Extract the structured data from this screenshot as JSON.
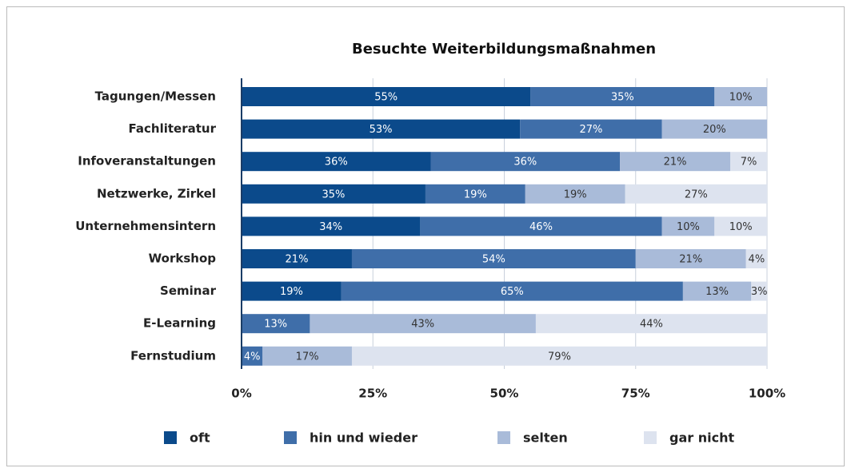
{
  "chart_data": {
    "type": "stacked-bar-horizontal",
    "title": "Besuchte Weiterbildungsmaßnahmen",
    "categories": [
      "Tagungen/Messen",
      "Fachliteratur",
      "Infoveranstaltungen",
      "Netzwerke, Zirkel",
      "Unternehmensintern",
      "Workshop",
      "Seminar",
      "E-Learning",
      "Fernstudium"
    ],
    "series": [
      {
        "name": "oft",
        "color": "#0b4a8b",
        "values": [
          55,
          53,
          36,
          35,
          34,
          21,
          19,
          0,
          0
        ],
        "value_labels": [
          "55%",
          "53%",
          "36%",
          "35%",
          "34%",
          "21%",
          "19%",
          null,
          null
        ]
      },
      {
        "name": "hin und wieder",
        "color": "#3f6ea9",
        "values": [
          35,
          27,
          36,
          19,
          46,
          54,
          65,
          13,
          4
        ],
        "value_labels": [
          "35%",
          "27%",
          "36%",
          "19%",
          "46%",
          "54%",
          "65%",
          "13%",
          "4%"
        ]
      },
      {
        "name": "selten",
        "color": "#a9bbd9",
        "values": [
          10,
          20,
          21,
          19,
          10,
          21,
          13,
          43,
          17
        ],
        "value_labels": [
          "10%",
          "20%",
          "21%",
          "19%",
          "10%",
          "21%",
          "13%",
          "43%",
          "17%"
        ]
      },
      {
        "name": "gar nicht",
        "color": "#dde3ef",
        "values": [
          0,
          0,
          7,
          27,
          10,
          4,
          3,
          44,
          79
        ],
        "value_labels": [
          null,
          null,
          "7%",
          "27%",
          "10%",
          "4%",
          "3%",
          "44%",
          "79%"
        ]
      }
    ],
    "xlim": [
      0,
      100
    ],
    "xticks": [
      {
        "value": 0,
        "label": "0%"
      },
      {
        "value": 25,
        "label": "25%"
      },
      {
        "value": 50,
        "label": "50%"
      },
      {
        "value": 75,
        "label": "75%"
      },
      {
        "value": 100,
        "label": "100%"
      }
    ],
    "grid": true,
    "legend": "bottom"
  }
}
